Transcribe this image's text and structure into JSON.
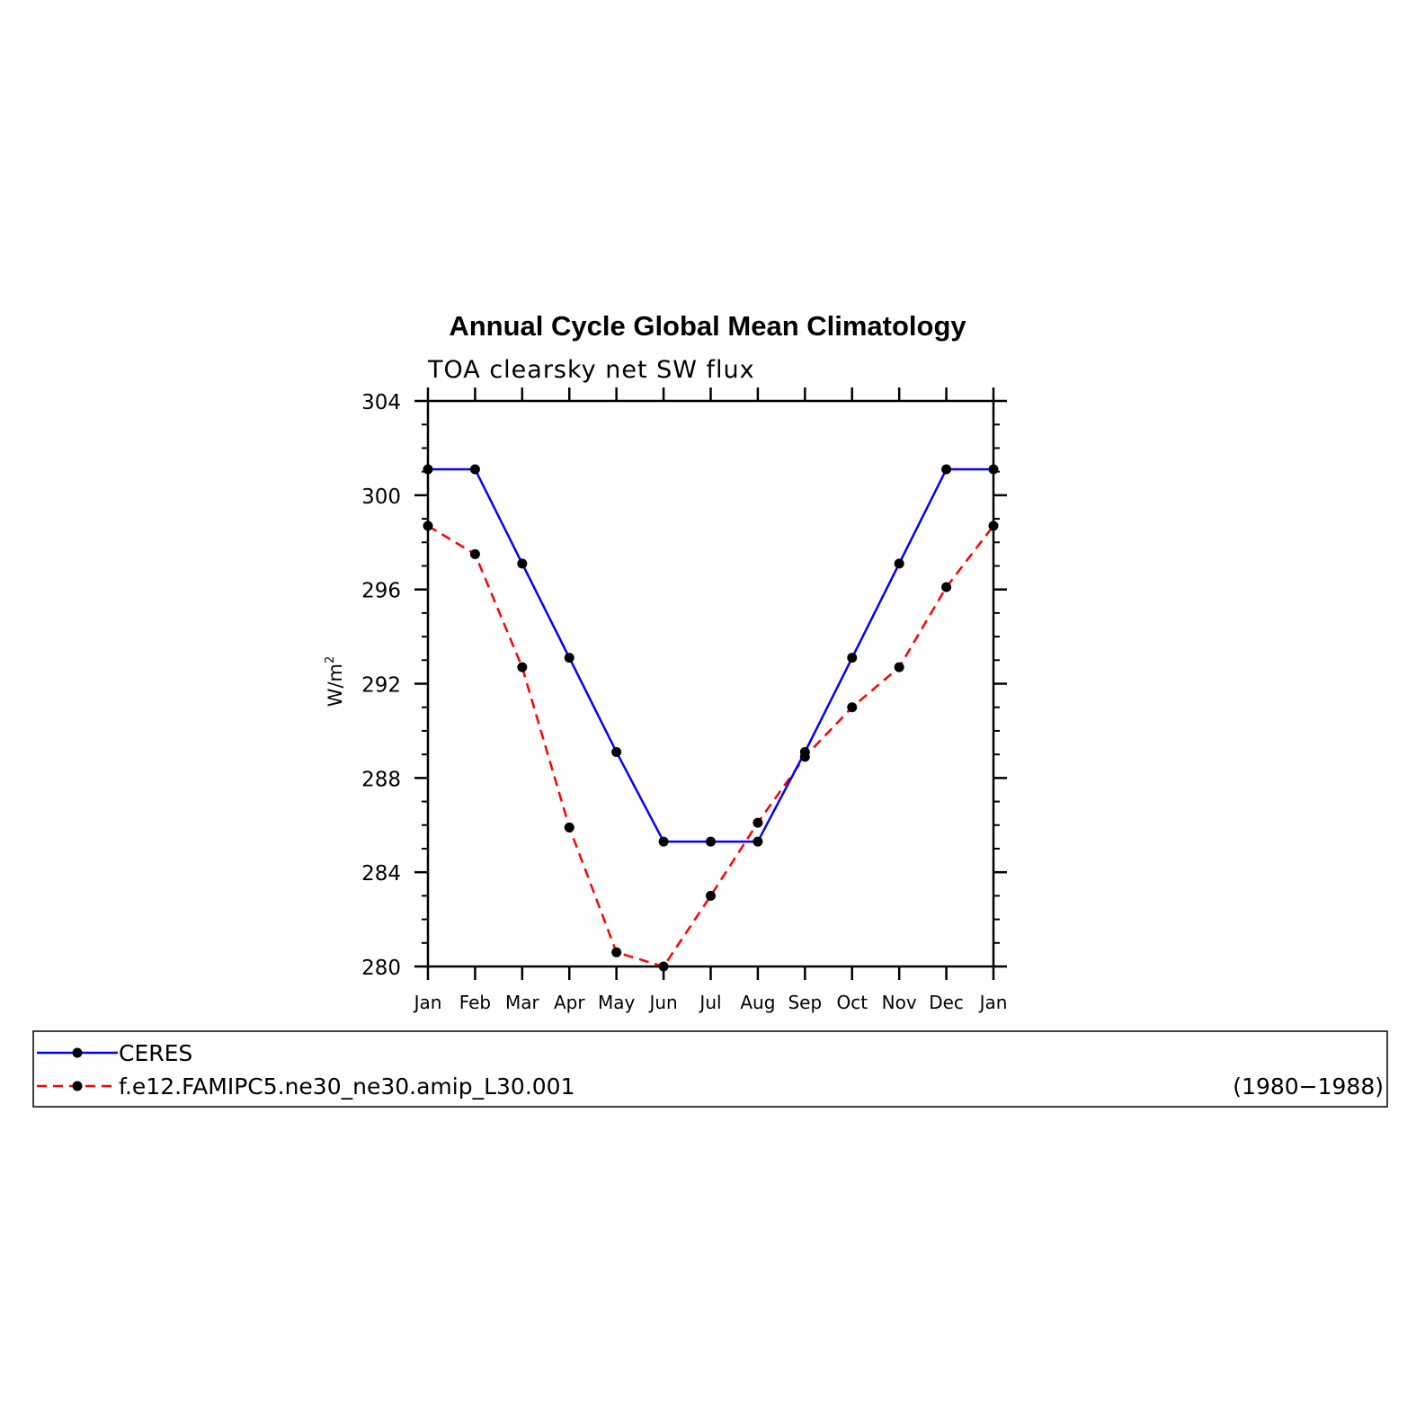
{
  "chart_data": {
    "type": "line",
    "title": "Annual Cycle Global Mean Climatology",
    "subtitle": "TOA clearsky net SW flux",
    "ylabel": "W/m",
    "ylabel_superscript": "2",
    "ylim": [
      280,
      304
    ],
    "yticks": [
      280,
      284,
      288,
      292,
      296,
      300,
      304
    ],
    "ytick_labels": [
      "280",
      "284",
      "288",
      "292",
      "296",
      "300",
      "304"
    ],
    "categories": [
      "Jan",
      "Feb",
      "Mar",
      "Apr",
      "May",
      "Jun",
      "Jul",
      "Aug",
      "Sep",
      "Oct",
      "Nov",
      "Dec",
      "Jan"
    ],
    "grid": false,
    "legend_position": "bottom",
    "series": [
      {
        "name": "CERES",
        "color": "#0000ff",
        "line_style": "solid",
        "marker": "filled-circle",
        "values": [
          301.1,
          301.1,
          297.1,
          293.1,
          289.1,
          285.3,
          285.3,
          285.3,
          289.1,
          293.1,
          297.1,
          301.1,
          301.1
        ]
      },
      {
        "name": "f.e12.FAMIPC5.ne30_ne30.amip_L30.001",
        "color": "#ff0000",
        "line_style": "dashed",
        "marker": "filled-circle",
        "values": [
          298.7,
          297.5,
          292.7,
          285.9,
          280.6,
          280.0,
          283.0,
          286.1,
          288.9,
          291.0,
          292.7,
          296.1,
          298.7
        ]
      }
    ]
  },
  "legend": {
    "entries": [
      {
        "label": "CERES",
        "period": ""
      },
      {
        "label": "f.e12.FAMIPC5.ne30_ne30.amip_L30.001",
        "period": "(1980−1988)"
      }
    ]
  }
}
